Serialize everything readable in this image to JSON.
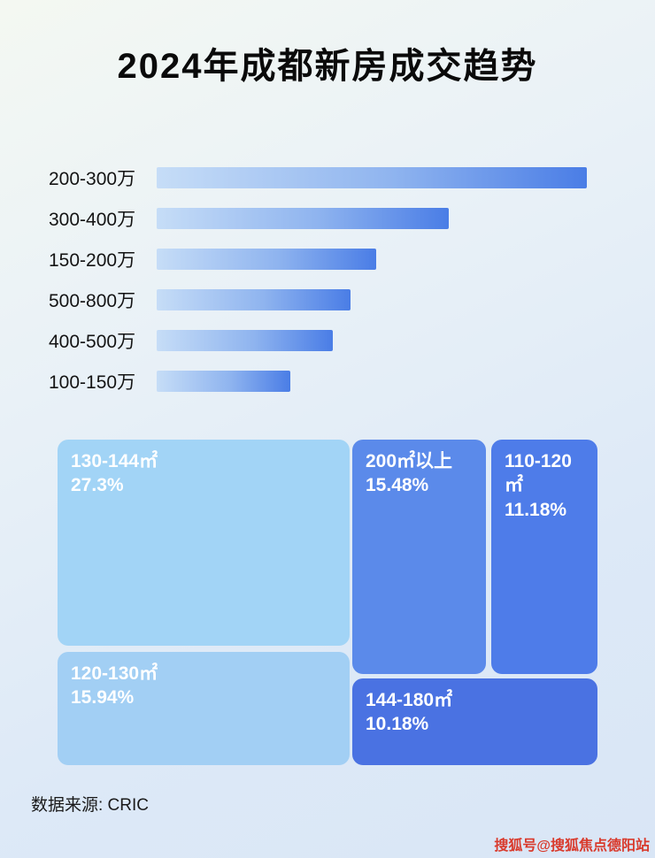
{
  "page": {
    "title": "2024年成都新房成交趋势",
    "source_label": "数据来源: CRIC",
    "watermark": "搜狐号@搜狐焦点德阳站"
  },
  "chart_data": [
    {
      "type": "bar",
      "orientation": "horizontal",
      "title": "2024年成都新房成交趋势",
      "categories": [
        "200-300万",
        "300-400万",
        "150-200万",
        "500-800万",
        "400-500万",
        "100-150万"
      ],
      "values_pct_of_max": [
        100,
        68,
        51,
        45,
        41,
        31
      ],
      "value_labels_shown": false,
      "bar_gradient": [
        "#c6ddf7",
        "#4a7de6"
      ]
    },
    {
      "type": "treemap",
      "items": [
        {
          "label": "130-144㎡",
          "value_pct": 27.3,
          "display": "27.3%",
          "color": "#a2d4f6"
        },
        {
          "label": "120-130㎡",
          "value_pct": 15.94,
          "display": "15.94%",
          "color": "#a2cff4"
        },
        {
          "label": "200㎡以上",
          "value_pct": 15.48,
          "display": "15.48%",
          "color": "#5b8aea"
        },
        {
          "label": "110-120㎡",
          "value_pct": 11.18,
          "display": "11.18%",
          "color": "#4e7ce9"
        },
        {
          "label": "144-180㎡",
          "value_pct": 10.18,
          "display": "10.18%",
          "color": "#4a72e2"
        }
      ]
    }
  ],
  "colors": {
    "background_start": "#f4f8f2",
    "background_end": "#d9e6f6",
    "title_text": "#0a0a0a",
    "block_text": "#ffffff",
    "watermark_red": "#d93a2c"
  }
}
